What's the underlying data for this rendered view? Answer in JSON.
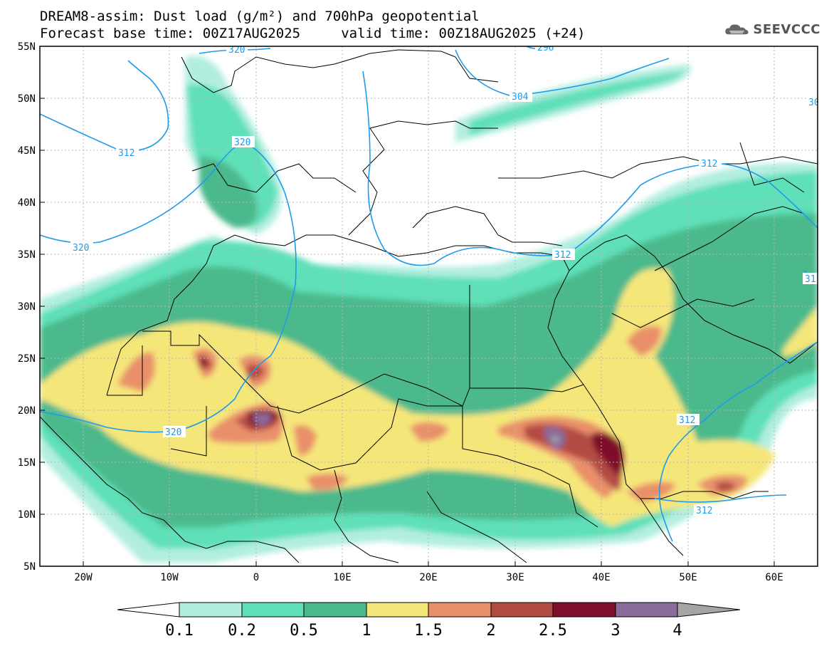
{
  "title_line1": "DREAM8-assim: Dust load (g/m²) and 700hPa geopotential",
  "title_line2": "Forecast base time: 00Z17AUG2025     valid time: 00Z18AUG2025 (+24)",
  "logo_text": "SEEVCCC",
  "map": {
    "lon_range": [
      -25,
      65
    ],
    "lat_range": [
      5,
      55
    ],
    "lat_labels": [
      "55N",
      "50N",
      "45N",
      "40N",
      "35N",
      "30N",
      "25N",
      "20N",
      "15N",
      "10N",
      "5N"
    ],
    "lon_labels": [
      "20W",
      "10W",
      "0",
      "10E",
      "20E",
      "30E",
      "40E",
      "50E",
      "60E"
    ],
    "contour_labels": [
      "320",
      "296",
      "304",
      "312",
      "320",
      "312",
      "312",
      "320",
      "312",
      "312",
      "31",
      "30"
    ]
  },
  "colorbar": {
    "levels": [
      "0.1",
      "0.2",
      "0.5",
      "1",
      "1.5",
      "2",
      "2.5",
      "3",
      "4"
    ],
    "colors": [
      "#ffffff",
      "#b2eee0",
      "#5fe0b8",
      "#4cb98c",
      "#f5e67a",
      "#e9906b",
      "#b24c42",
      "#7f0f2a",
      "#8a6b9c",
      "#a5a5a5"
    ]
  },
  "palette": {
    "contour_line": "#1e9bea",
    "border_line": "#000000",
    "grid_line": "#b8b8b8"
  }
}
